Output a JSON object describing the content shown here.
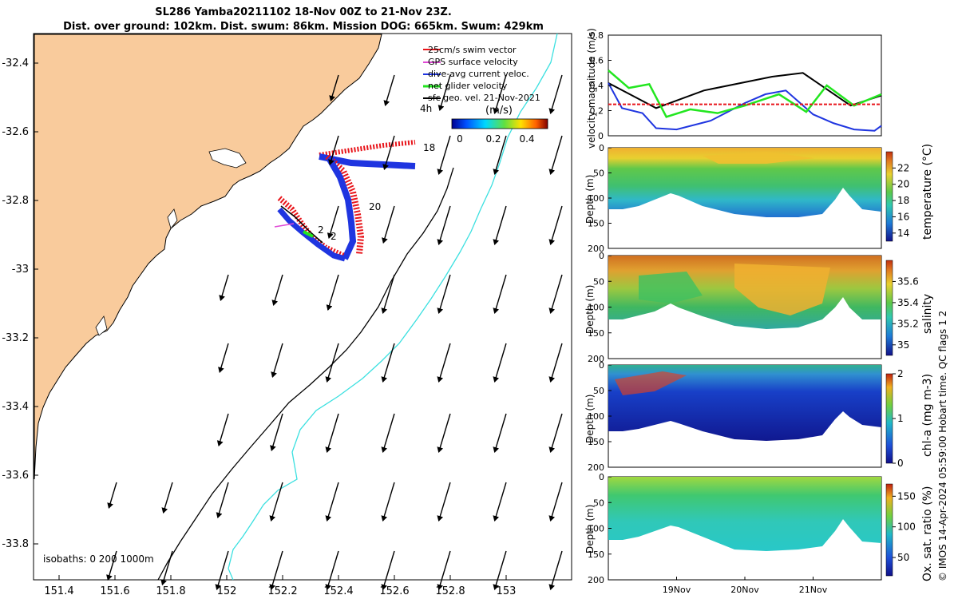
{
  "header": {
    "title_line1": "SL286 Yamba20211102 18-Nov 00Z to 21-Nov 23Z.",
    "title_line2": "Dist. over ground: 102km. Dist. swum: 86km. Mission DOG: 665km. Swum: 429km"
  },
  "credit": "© IMOS 14-Apr-2024 05:59:00 Hobart time. QC flags 1  2",
  "colors": {
    "land": "#f9cb9c",
    "swim": "#e8141a",
    "gps": "#e04ad6",
    "dive": "#1f35e0",
    "glider": "#22e61f",
    "geo": "#000000",
    "isobath": "#3be0e0"
  },
  "map": {
    "legend": [
      {
        "label": "25cm/s swim vector",
        "color": "#e8141a"
      },
      {
        "label": "GPS surface velocity",
        "color": "#e04ad6"
      },
      {
        "label": "dive-avg current veloc.",
        "color": "#1f35e0"
      },
      {
        "label": "net glider velocity",
        "color": "#22e61f"
      },
      {
        "label": "sfc geo. vel. 21-Nov-2021",
        "color": "#000000"
      }
    ],
    "colorbar_title": "(m/s)",
    "colorbar_ticks": [
      "0",
      "0.2",
      "0.4"
    ],
    "time_label": "4h",
    "day_labels": [
      "18",
      "20",
      "2",
      "2"
    ],
    "isobaths_label": "isobaths: 0   200   1000m",
    "x_ticks": [
      "151.4",
      "151.6",
      "151.8",
      "152",
      "152.2",
      "152.4",
      "152.6",
      "152.8",
      "153"
    ],
    "y_ticks": [
      "-32.4",
      "-32.6",
      "-32.8",
      "-33",
      "-33.2",
      "-33.4",
      "-33.6",
      "-33.8"
    ]
  },
  "chart_data": [
    {
      "type": "line",
      "title": "",
      "ylabel": "velocity magnitude (m/s)",
      "ylim": [
        0,
        0.8
      ],
      "y_ticks": [
        "0",
        "0.2",
        "0.4",
        "0.6",
        "0.8"
      ],
      "x_range": [
        18.0,
        22.0
      ],
      "series": [
        {
          "color": "#000000",
          "x": [
            18.0,
            18.7,
            19.4,
            20.4,
            20.85,
            21.55,
            22.0
          ],
          "y": [
            0.42,
            0.22,
            0.36,
            0.47,
            0.5,
            0.24,
            0.32
          ]
        },
        {
          "color": "#1f35e0",
          "x": [
            18.0,
            18.2,
            18.5,
            18.7,
            19.0,
            19.5,
            20.0,
            20.3,
            20.6,
            21.0,
            21.3,
            21.6,
            21.9,
            22.0
          ],
          "y": [
            0.42,
            0.22,
            0.18,
            0.06,
            0.05,
            0.12,
            0.26,
            0.33,
            0.36,
            0.17,
            0.1,
            0.05,
            0.04,
            0.08
          ]
        },
        {
          "color": "#22e61f",
          "x": [
            18.0,
            18.3,
            18.6,
            18.85,
            19.2,
            19.6,
            20.0,
            20.5,
            20.9,
            21.2,
            21.6,
            22.0
          ],
          "y": [
            0.52,
            0.38,
            0.41,
            0.15,
            0.21,
            0.18,
            0.24,
            0.33,
            0.19,
            0.4,
            0.24,
            0.33
          ]
        },
        {
          "color": "#e8141a",
          "x": [
            18.0,
            22.0
          ],
          "y": [
            0.25,
            0.25
          ]
        }
      ]
    },
    {
      "type": "heatmap",
      "ylabel": "Depth (m)",
      "clabel": "temperature (°C)",
      "y_ticks": [
        "0",
        "50",
        "100",
        "150",
        "200"
      ],
      "c_ticks": [
        "14",
        "16",
        "18",
        "20",
        "22"
      ],
      "clim": [
        13,
        24
      ]
    },
    {
      "type": "heatmap",
      "ylabel": "Depth (m)",
      "clabel": "salinity",
      "y_ticks": [
        "0",
        "50",
        "100",
        "150",
        "200"
      ],
      "c_ticks": [
        "35",
        "35.2",
        "35.4",
        "35.6"
      ],
      "clim": [
        34.9,
        35.8
      ]
    },
    {
      "type": "heatmap",
      "ylabel": "Depth (m)",
      "clabel": "chl-a (mg m-3)",
      "y_ticks": [
        "0",
        "50",
        "100",
        "150",
        "200"
      ],
      "c_ticks": [
        "0",
        "1",
        "2"
      ],
      "clim": [
        0,
        2
      ]
    },
    {
      "type": "heatmap",
      "ylabel": "Depth (m)",
      "clabel": "Ox. sat. ratio (%)",
      "y_ticks": [
        "0",
        "50",
        "100",
        "150",
        "200"
      ],
      "c_ticks": [
        "50",
        "100",
        "150"
      ],
      "clim": [
        20,
        170
      ],
      "x_ticks": [
        "19Nov",
        "20Nov",
        "21Nov"
      ]
    }
  ]
}
